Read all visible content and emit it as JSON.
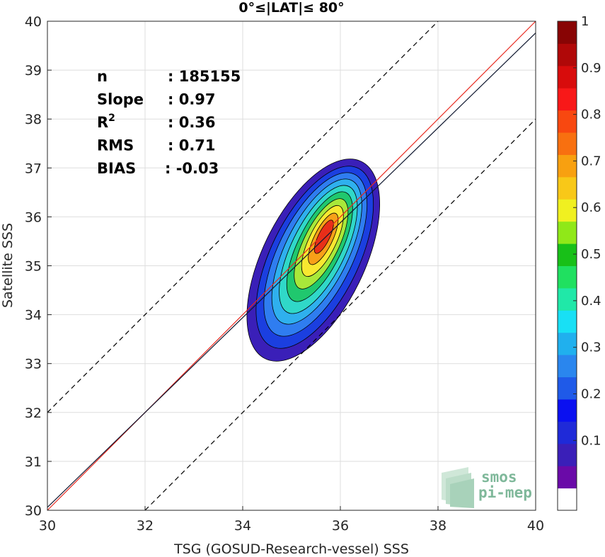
{
  "chart_data": {
    "type": "scatter",
    "title": "0°≤|LAT|≤ 80°",
    "xlabel": "TSG (GOSUD-Research-vessel) SSS",
    "ylabel": "Satellite SSS",
    "xlim": [
      30,
      40
    ],
    "ylim": [
      30,
      40
    ],
    "xticks": [
      30,
      32,
      34,
      36,
      38,
      40
    ],
    "yticks": [
      30,
      31,
      32,
      33,
      34,
      35,
      36,
      37,
      38,
      39,
      40
    ],
    "grid": true,
    "density": {
      "center": [
        35.62,
        35.55
      ],
      "contour_levels": [
        0.05,
        0.1,
        0.2,
        0.3,
        0.4,
        0.5,
        0.6,
        0.7,
        0.8,
        0.9
      ],
      "colors": [
        "#3a1fb8",
        "#1b3fe0",
        "#2f7df0",
        "#2fb0ee",
        "#30d8c8",
        "#20c86e",
        "#a8e83a",
        "#f8e830",
        "#f8a018",
        "#e83018"
      ]
    },
    "lines": [
      {
        "name": "1:1",
        "slope": 1.0,
        "intercept": 0.0,
        "color": "#e8281e",
        "style": "solid"
      },
      {
        "name": "fit",
        "slope": 0.97,
        "intercept": 0.96,
        "color": "#101830",
        "style": "solid"
      },
      {
        "name": "upper",
        "slope": 1.0,
        "intercept": 2.0,
        "color": "#000000",
        "style": "dashed"
      },
      {
        "name": "lower",
        "slope": 1.0,
        "intercept": -2.0,
        "color": "#000000",
        "style": "dashed"
      }
    ],
    "stats": [
      {
        "label": "n",
        "value": ": 185155"
      },
      {
        "label": "Slope",
        "value": ": 0.97"
      },
      {
        "label": "R",
        "sup": "2",
        "value": ": 0.36"
      },
      {
        "label": "RMS",
        "value": ": 0.71"
      },
      {
        "label": "BIAS",
        "value": ": -0.03"
      }
    ],
    "colorbar": {
      "ticks": [
        "0.1",
        "0.2",
        "0.3",
        "0.4",
        "0.5",
        "0.6",
        "0.7",
        "0.8",
        "0.9",
        "1"
      ],
      "colors": [
        "#ffffff",
        "#6a0aa8",
        "#3a1fb8",
        "#1f2ad8",
        "#0a10f0",
        "#1f5ae8",
        "#2a86ee",
        "#20b0ee",
        "#18e0f5",
        "#20e8a8",
        "#20e060",
        "#18c018",
        "#90e818",
        "#f0f020",
        "#f8c818",
        "#f8a010",
        "#f87010",
        "#f84810",
        "#f81818",
        "#d80c0c",
        "#b00808",
        "#880404"
      ]
    }
  },
  "logo": {
    "line1": "smos",
    "line2": "pi-mep"
  }
}
